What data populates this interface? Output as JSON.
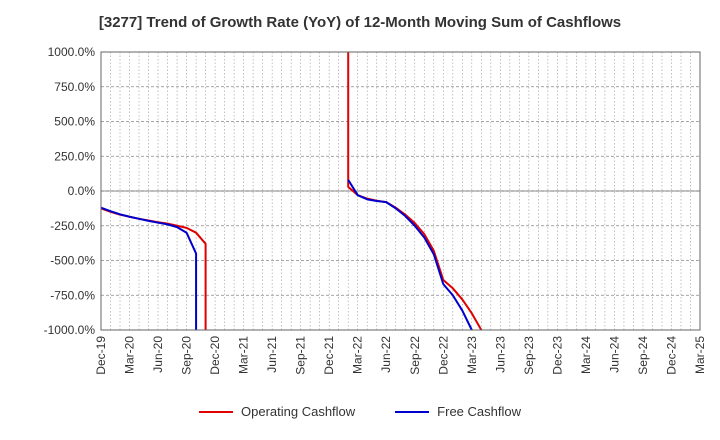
{
  "chart_data": {
    "type": "line",
    "title": "[3277]  Trend of Growth Rate (YoY) of 12-Month Moving Sum of Cashflows",
    "xlabel": "",
    "ylabel": "",
    "ylim": [
      -1000,
      1000
    ],
    "xlim": [
      "Dec-19",
      "Mar-25"
    ],
    "y_ticks": [
      "1000.0%",
      "750.0%",
      "500.0%",
      "250.0%",
      "0.0%",
      "-250.0%",
      "-500.0%",
      "-750.0%",
      "-1000.0%"
    ],
    "y_tick_values": [
      1000,
      750,
      500,
      250,
      0,
      -250,
      -500,
      -750,
      -1000
    ],
    "x_ticks": [
      "Dec-19",
      "Mar-20",
      "Jun-20",
      "Sep-20",
      "Dec-20",
      "Mar-21",
      "Jun-21",
      "Sep-21",
      "Dec-21",
      "Mar-22",
      "Jun-22",
      "Sep-22",
      "Dec-22",
      "Mar-23",
      "Jun-23",
      "Sep-23",
      "Dec-23",
      "Mar-24",
      "Jun-24",
      "Sep-24",
      "Dec-24",
      "Mar-25"
    ],
    "grid": true,
    "legend_position": "bottom",
    "series": [
      {
        "name": "Operating Cashflow",
        "color": "#e00000",
        "segments": [
          [
            [
              "Dec-19",
              -125
            ],
            [
              "Jan-20",
              -150
            ],
            [
              "Feb-20",
              -170
            ],
            [
              "Mar-20",
              -185
            ],
            [
              "Apr-20",
              -200
            ],
            [
              "May-20",
              -212
            ],
            [
              "Jun-20",
              -225
            ],
            [
              "Jul-20",
              -235
            ],
            [
              "Aug-20",
              -250
            ],
            [
              "Sep-20",
              -265
            ],
            [
              "Oct-20",
              -300
            ],
            [
              "Nov-20",
              -380
            ],
            [
              "Nov-20",
              -1000
            ]
          ],
          [
            [
              "Feb-22",
              1000
            ],
            [
              "Feb-22",
              30
            ],
            [
              "Mar-22",
              -30
            ],
            [
              "Apr-22",
              -55
            ],
            [
              "May-22",
              -70
            ],
            [
              "Jun-22",
              -80
            ],
            [
              "Jul-22",
              -120
            ],
            [
              "Aug-22",
              -170
            ],
            [
              "Sep-22",
              -230
            ],
            [
              "Oct-22",
              -310
            ],
            [
              "Nov-22",
              -430
            ],
            [
              "Dec-22",
              -640
            ],
            [
              "Jan-23",
              -700
            ],
            [
              "Feb-23",
              -780
            ],
            [
              "Mar-23",
              -880
            ],
            [
              "Apr-23",
              -1000
            ]
          ]
        ]
      },
      {
        "name": "Free Cashflow",
        "color": "#0000cc",
        "segments": [
          [
            [
              "Dec-19",
              -120
            ],
            [
              "Jan-20",
              -145
            ],
            [
              "Feb-20",
              -168
            ],
            [
              "Mar-20",
              -185
            ],
            [
              "Apr-20",
              -200
            ],
            [
              "May-20",
              -215
            ],
            [
              "Jun-20",
              -228
            ],
            [
              "Jul-20",
              -240
            ],
            [
              "Aug-20",
              -260
            ],
            [
              "Sep-20",
              -300
            ],
            [
              "Oct-20",
              -450
            ],
            [
              "Oct-20",
              -1000
            ]
          ],
          [
            [
              "Feb-22",
              80
            ],
            [
              "Mar-22",
              -30
            ],
            [
              "Apr-22",
              -60
            ],
            [
              "May-22",
              -72
            ],
            [
              "Jun-22",
              -80
            ],
            [
              "Jul-22",
              -125
            ],
            [
              "Aug-22",
              -180
            ],
            [
              "Sep-22",
              -250
            ],
            [
              "Oct-22",
              -335
            ],
            [
              "Nov-22",
              -455
            ],
            [
              "Dec-22",
              -670
            ],
            [
              "Jan-23",
              -750
            ],
            [
              "Feb-23",
              -860
            ],
            [
              "Mar-23",
              -1000
            ]
          ]
        ]
      }
    ]
  }
}
